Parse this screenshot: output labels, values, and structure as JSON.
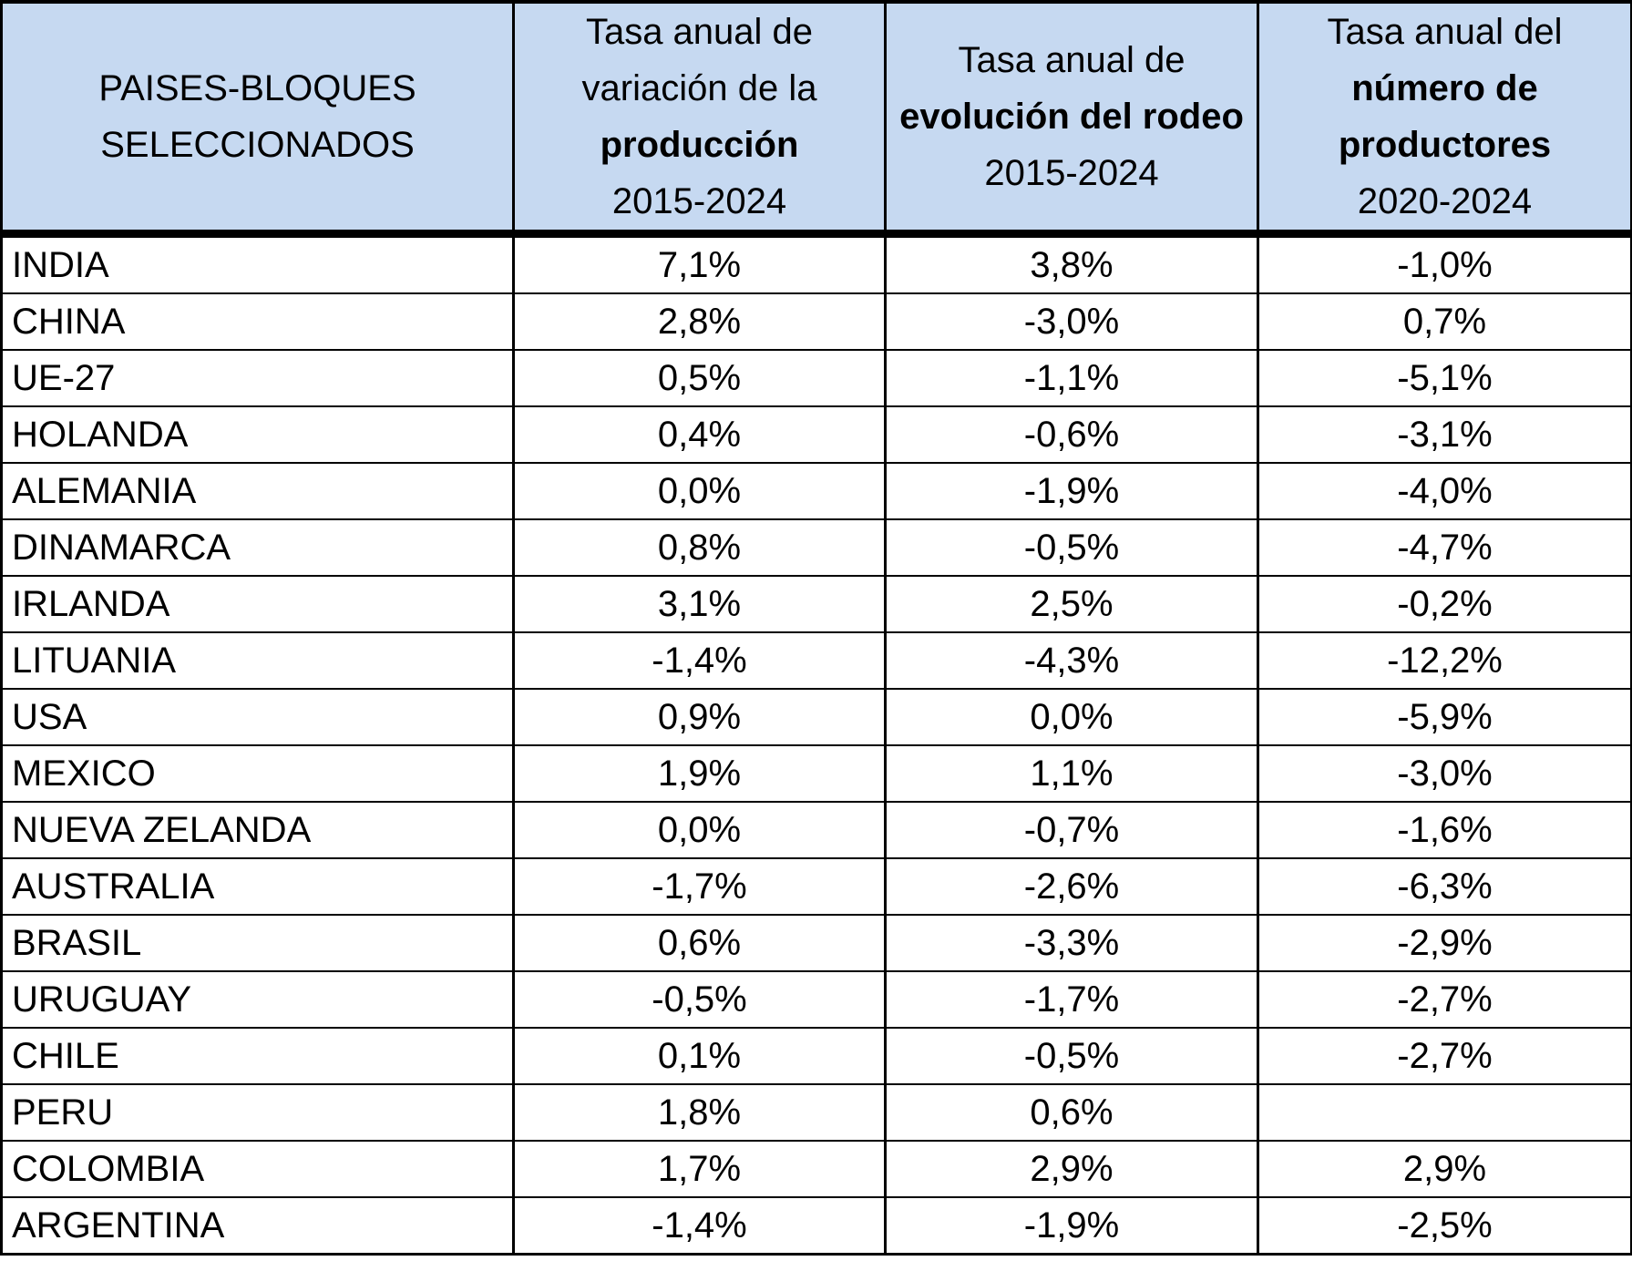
{
  "header": {
    "col0": {
      "line1": "PAISES-BLOQUES",
      "line2": "SELECCIONADOS"
    },
    "col1": {
      "line1": "Tasa anual de",
      "line2": "variación de la",
      "line3": "producción",
      "line4": "2015-2024"
    },
    "col2": {
      "line1": "Tasa anual de",
      "line2": "evolución del rodeo",
      "line3": "2015-2024"
    },
    "col3": {
      "line1": "Tasa anual del",
      "line2": "número de",
      "line3": "productores",
      "line4": "2020-2024"
    }
  },
  "rows": [
    {
      "country": "INDIA",
      "produccion": "7,1%",
      "rodeo": "3,8%",
      "productores": "-1,0%"
    },
    {
      "country": "CHINA",
      "produccion": "2,8%",
      "rodeo": "-3,0%",
      "productores": "0,7%"
    },
    {
      "country": "UE-27",
      "produccion": "0,5%",
      "rodeo": "-1,1%",
      "productores": "-5,1%"
    },
    {
      "country": "HOLANDA",
      "produccion": "0,4%",
      "rodeo": "-0,6%",
      "productores": "-3,1%"
    },
    {
      "country": "ALEMANIA",
      "produccion": "0,0%",
      "rodeo": "-1,9%",
      "productores": "-4,0%"
    },
    {
      "country": "DINAMARCA",
      "produccion": "0,8%",
      "rodeo": "-0,5%",
      "productores": "-4,7%"
    },
    {
      "country": "IRLANDA",
      "produccion": "3,1%",
      "rodeo": "2,5%",
      "productores": "-0,2%"
    },
    {
      "country": "LITUANIA",
      "produccion": "-1,4%",
      "rodeo": "-4,3%",
      "productores": "-12,2%"
    },
    {
      "country": "USA",
      "produccion": "0,9%",
      "rodeo": "0,0%",
      "productores": "-5,9%"
    },
    {
      "country": "MEXICO",
      "produccion": "1,9%",
      "rodeo": "1,1%",
      "productores": "-3,0%"
    },
    {
      "country": "NUEVA ZELANDA",
      "produccion": "0,0%",
      "rodeo": "-0,7%",
      "productores": "-1,6%"
    },
    {
      "country": "AUSTRALIA",
      "produccion": "-1,7%",
      "rodeo": "-2,6%",
      "productores": "-6,3%"
    },
    {
      "country": "BRASIL",
      "produccion": "0,6%",
      "rodeo": "-3,3%",
      "productores": "-2,9%"
    },
    {
      "country": "URUGUAY",
      "produccion": "-0,5%",
      "rodeo": "-1,7%",
      "productores": "-2,7%"
    },
    {
      "country": "CHILE",
      "produccion": "0,1%",
      "rodeo": "-0,5%",
      "productores": "-2,7%"
    },
    {
      "country": "PERU",
      "produccion": "1,8%",
      "rodeo": "0,6%",
      "productores": ""
    },
    {
      "country": "COLOMBIA",
      "produccion": "1,7%",
      "rodeo": "2,9%",
      "productores": "2,9%"
    },
    {
      "country": "ARGENTINA",
      "produccion": "-1,4%",
      "rodeo": "-1,9%",
      "productores": "-2,5%"
    }
  ]
}
